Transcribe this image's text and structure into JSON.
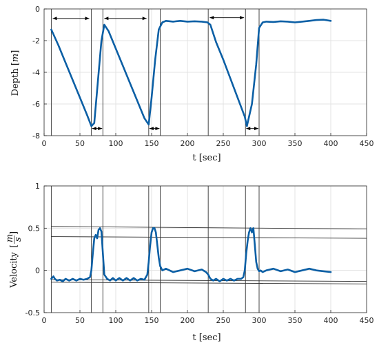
{
  "chart_data": [
    {
      "type": "line",
      "title": "",
      "xlabel": "t [sec]",
      "ylabel": "Depth [m]",
      "ylabel_parts": {
        "name": "Depth",
        "unit": "m"
      },
      "xlim": [
        0,
        450
      ],
      "ylim": [
        -8,
        0
      ],
      "xticks": [
        0,
        50,
        100,
        150,
        200,
        250,
        300,
        350,
        400,
        450
      ],
      "yticks": [
        -8,
        -6,
        -4,
        -2,
        0
      ],
      "grid": true,
      "color": "#0b5fa5",
      "series": [
        {
          "x": [
            10,
            20,
            30,
            40,
            50,
            60,
            66,
            70,
            75,
            80,
            84,
            90,
            100,
            110,
            120,
            130,
            140,
            146,
            150,
            155,
            160,
            165,
            170,
            180,
            190,
            200,
            210,
            220,
            228,
            232,
            240,
            250,
            260,
            270,
            280,
            283,
            290,
            296,
            300,
            305,
            310,
            320,
            330,
            340,
            350,
            360,
            370,
            380,
            390,
            400
          ],
          "y": [
            -1.3,
            -2.3,
            -3.4,
            -4.5,
            -5.6,
            -6.7,
            -7.4,
            -7.2,
            -4.6,
            -2.0,
            -1.0,
            -1.4,
            -2.5,
            -3.6,
            -4.7,
            -5.8,
            -6.9,
            -7.3,
            -5.6,
            -3.2,
            -1.3,
            -0.85,
            -0.75,
            -0.8,
            -0.75,
            -0.8,
            -0.78,
            -0.8,
            -0.85,
            -1.0,
            -2.1,
            -3.2,
            -4.4,
            -5.6,
            -6.8,
            -7.4,
            -6.0,
            -3.5,
            -1.2,
            -0.85,
            -0.8,
            -0.82,
            -0.78,
            -0.8,
            -0.85,
            -0.8,
            -0.75,
            -0.7,
            -0.68,
            -0.75
          ]
        }
      ],
      "vlines": [
        10,
        66,
        82,
        146,
        162,
        229,
        281,
        300
      ],
      "arrows_y": [
        {
          "x1": 12,
          "x2": 63,
          "y": -0.6
        },
        {
          "x1": 84,
          "x2": 143,
          "y": -0.6
        },
        {
          "x1": 231,
          "x2": 279,
          "y": -0.55
        },
        {
          "x1": 67,
          "x2": 81,
          "y": -7.55
        },
        {
          "x1": 147,
          "x2": 161,
          "y": -7.55
        },
        {
          "x1": 282,
          "x2": 299,
          "y": -7.55
        }
      ]
    },
    {
      "type": "line",
      "title": "",
      "xlabel": "t [sec]",
      "ylabel": "Velocity [m/s]",
      "ylabel_parts": {
        "name": "Velocity",
        "num": "m",
        "den": "s"
      },
      "xlim": [
        0,
        450
      ],
      "ylim": [
        -0.5,
        1
      ],
      "xticks": [
        0,
        50,
        100,
        150,
        200,
        250,
        300,
        350,
        400,
        450
      ],
      "yticks": [
        -0.5,
        0,
        0.5,
        1
      ],
      "yticklabels": [
        "-0.5",
        "0",
        "0.5",
        "1"
      ],
      "grid": true,
      "color": "#0b5fa5",
      "series": [
        {
          "x": [
            10,
            13,
            15,
            18,
            22,
            26,
            30,
            35,
            40,
            45,
            50,
            55,
            60,
            64,
            66,
            68,
            70,
            72,
            74,
            76,
            78,
            80,
            82,
            84,
            88,
            92,
            96,
            100,
            105,
            110,
            115,
            120,
            125,
            130,
            135,
            140,
            144,
            146,
            148,
            150,
            152,
            154,
            156,
            158,
            160,
            162,
            165,
            170,
            180,
            190,
            200,
            210,
            220,
            226,
            229,
            232,
            236,
            240,
            245,
            250,
            255,
            260,
            265,
            270,
            275,
            278,
            280,
            282,
            284,
            286,
            288,
            290,
            292,
            294,
            296,
            298,
            300,
            302,
            305,
            310,
            320,
            330,
            340,
            350,
            360,
            370,
            380,
            390,
            400
          ],
          "y": [
            -0.1,
            -0.07,
            -0.1,
            -0.12,
            -0.11,
            -0.13,
            -0.1,
            -0.12,
            -0.1,
            -0.12,
            -0.1,
            -0.11,
            -0.1,
            -0.08,
            0.0,
            0.2,
            0.38,
            0.42,
            0.38,
            0.48,
            0.5,
            0.46,
            0.2,
            -0.05,
            -0.1,
            -0.12,
            -0.09,
            -0.12,
            -0.09,
            -0.12,
            -0.09,
            -0.12,
            -0.09,
            -0.12,
            -0.1,
            -0.11,
            -0.05,
            0.1,
            0.3,
            0.45,
            0.5,
            0.5,
            0.45,
            0.3,
            0.15,
            0.05,
            0.0,
            0.02,
            -0.02,
            0.0,
            0.02,
            -0.01,
            0.01,
            -0.02,
            -0.05,
            -0.1,
            -0.12,
            -0.1,
            -0.13,
            -0.1,
            -0.12,
            -0.1,
            -0.12,
            -0.1,
            -0.1,
            -0.08,
            0.0,
            0.2,
            0.35,
            0.45,
            0.5,
            0.45,
            0.5,
            0.3,
            0.1,
            0.02,
            -0.01,
            0.0,
            -0.02,
            0.0,
            0.02,
            -0.01,
            0.01,
            -0.02,
            0.0,
            0.02,
            0.0,
            -0.01,
            -0.02
          ]
        }
      ],
      "vlines": [
        10,
        66,
        82,
        146,
        162,
        229,
        281,
        300
      ],
      "hlines": [
        {
          "x1": 10,
          "y1": 0.52,
          "x2": 450,
          "y2": 0.49
        },
        {
          "x1": 10,
          "y1": 0.4,
          "x2": 450,
          "y2": 0.38
        },
        {
          "x1": 10,
          "y1": -0.11,
          "x2": 450,
          "y2": -0.13
        },
        {
          "x1": 10,
          "y1": -0.14,
          "x2": 450,
          "y2": -0.16
        }
      ]
    }
  ]
}
